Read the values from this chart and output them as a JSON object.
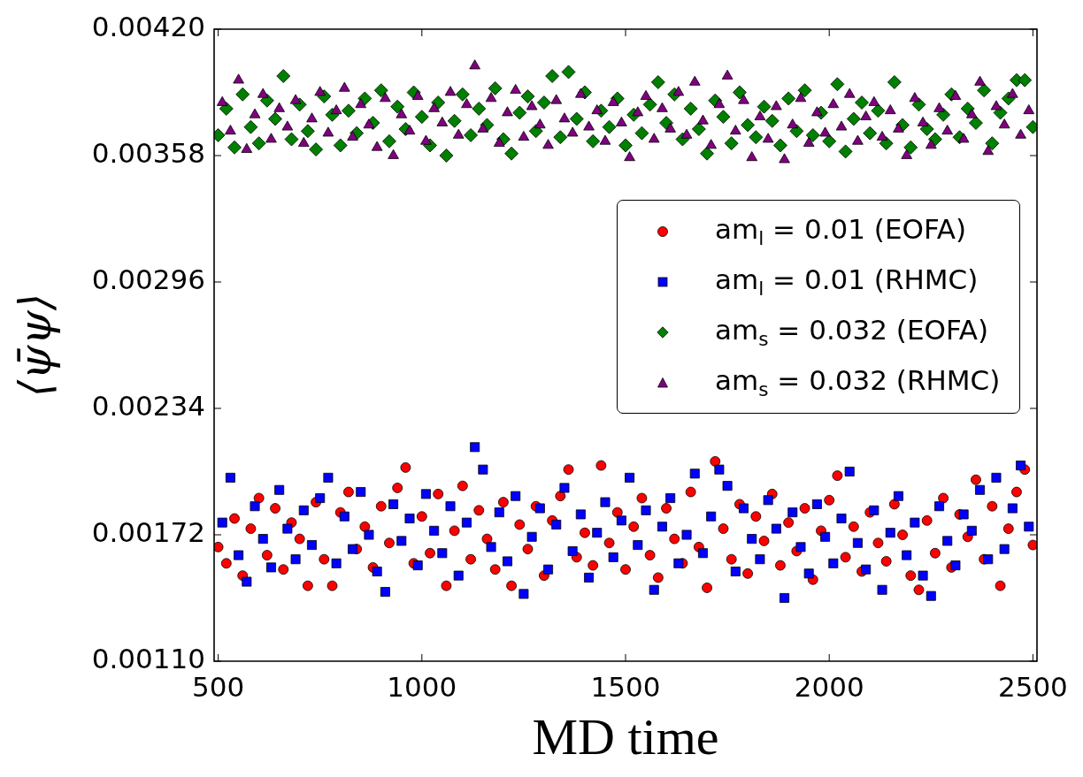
{
  "chart_data": {
    "type": "scatter",
    "xlabel": "MD time",
    "ylabel": "⟨ψ̄ψ⟩",
    "xlim": [
      490,
      2510
    ],
    "xticks": [
      500,
      1000,
      1500,
      2000,
      2500
    ],
    "ylim": [
      0.0011,
      0.0042
    ],
    "yticks": [
      {
        "value": 0.0011,
        "label": "0.00110"
      },
      {
        "value": 0.00172,
        "label": "0.00172"
      },
      {
        "value": 0.00234,
        "label": "0.00234"
      },
      {
        "value": 0.00296,
        "label": "0.00296"
      },
      {
        "value": 0.00358,
        "label": "0.00358"
      },
      {
        "value": 0.0042,
        "label": "0.00420"
      }
    ],
    "legend": "right",
    "series": [
      {
        "name": "am$_{l}$ = 0.01 (EOFA)",
        "color": "#ff0000",
        "marker": "circle",
        "x": [
          500,
          520,
          540,
          560,
          580,
          600,
          620,
          640,
          660,
          680,
          700,
          720,
          740,
          760,
          780,
          800,
          820,
          840,
          860,
          880,
          900,
          920,
          940,
          960,
          980,
          1000,
          1020,
          1040,
          1060,
          1080,
          1100,
          1120,
          1140,
          1160,
          1180,
          1200,
          1220,
          1240,
          1260,
          1280,
          1300,
          1320,
          1340,
          1360,
          1380,
          1400,
          1420,
          1440,
          1460,
          1480,
          1500,
          1520,
          1540,
          1560,
          1580,
          1600,
          1620,
          1640,
          1660,
          1680,
          1700,
          1720,
          1740,
          1760,
          1780,
          1800,
          1820,
          1840,
          1860,
          1880,
          1900,
          1920,
          1940,
          1960,
          1980,
          2000,
          2020,
          2040,
          2060,
          2080,
          2100,
          2120,
          2140,
          2160,
          2180,
          2200,
          2220,
          2240,
          2260,
          2280,
          2300,
          2320,
          2340,
          2360,
          2380,
          2400,
          2420,
          2440,
          2460,
          2480,
          2500
        ],
        "values": [
          0.00166,
          0.00158,
          0.0018,
          0.00152,
          0.00175,
          0.0019,
          0.00162,
          0.00185,
          0.00155,
          0.00178,
          0.0017,
          0.00147,
          0.00188,
          0.0016,
          0.00147,
          0.00183,
          0.00193,
          0.00165,
          0.00176,
          0.00156,
          0.00186,
          0.00168,
          0.00195,
          0.00205,
          0.00158,
          0.00181,
          0.00163,
          0.00192,
          0.00147,
          0.00174,
          0.00196,
          0.0016,
          0.00184,
          0.0017,
          0.00155,
          0.00188,
          0.00147,
          0.00177,
          0.00165,
          0.00186,
          0.00152,
          0.00179,
          0.00191,
          0.00204,
          0.00161,
          0.00173,
          0.00157,
          0.00206,
          0.00168,
          0.00183,
          0.00155,
          0.00176,
          0.0019,
          0.00162,
          0.00151,
          0.00185,
          0.0017,
          0.00158,
          0.00193,
          0.00166,
          0.00146,
          0.00208,
          0.00175,
          0.0016,
          0.00187,
          0.00153,
          0.00181,
          0.00169,
          0.00192,
          0.00157,
          0.00178,
          0.00164,
          0.00185,
          0.0015,
          0.00174,
          0.00189,
          0.00201,
          0.00161,
          0.00176,
          0.00154,
          0.00183,
          0.00168,
          0.00159,
          0.00187,
          0.00172,
          0.00152,
          0.00145,
          0.00179,
          0.00163,
          0.0019,
          0.00156,
          0.00182,
          0.00171,
          0.00199,
          0.0016,
          0.00186,
          0.00147,
          0.00175,
          0.00193,
          0.00204,
          0.00167
        ]
      },
      {
        "name": "am$_{l}$ = 0.01 (RHMC)",
        "color": "#0000ff",
        "marker": "square",
        "x": [
          510,
          530,
          550,
          570,
          590,
          610,
          630,
          650,
          670,
          690,
          710,
          730,
          750,
          770,
          790,
          810,
          830,
          850,
          870,
          890,
          910,
          930,
          950,
          970,
          990,
          1010,
          1030,
          1050,
          1070,
          1090,
          1110,
          1130,
          1150,
          1170,
          1190,
          1210,
          1230,
          1250,
          1270,
          1290,
          1310,
          1330,
          1350,
          1370,
          1390,
          1410,
          1430,
          1450,
          1470,
          1490,
          1510,
          1530,
          1550,
          1570,
          1590,
          1610,
          1630,
          1650,
          1670,
          1690,
          1710,
          1730,
          1750,
          1770,
          1790,
          1810,
          1830,
          1850,
          1870,
          1890,
          1910,
          1930,
          1950,
          1970,
          1990,
          2010,
          2030,
          2050,
          2070,
          2090,
          2110,
          2130,
          2150,
          2170,
          2190,
          2210,
          2230,
          2250,
          2270,
          2290,
          2310,
          2330,
          2350,
          2370,
          2390,
          2410,
          2430,
          2450,
          2470,
          2490
        ],
        "values": [
          0.00178,
          0.002,
          0.00162,
          0.00149,
          0.00186,
          0.0017,
          0.00156,
          0.00194,
          0.00175,
          0.0016,
          0.00184,
          0.00167,
          0.0019,
          0.002,
          0.00158,
          0.00181,
          0.00165,
          0.00193,
          0.00172,
          0.00154,
          0.00144,
          0.00187,
          0.00169,
          0.0018,
          0.00157,
          0.00192,
          0.00174,
          0.00163,
          0.00186,
          0.00152,
          0.00178,
          0.00215,
          0.00204,
          0.00166,
          0.00183,
          0.00159,
          0.00191,
          0.00143,
          0.00171,
          0.00185,
          0.00155,
          0.00177,
          0.00195,
          0.00164,
          0.00182,
          0.00151,
          0.00173,
          0.00188,
          0.00161,
          0.00179,
          0.002,
          0.00167,
          0.00184,
          0.00145,
          0.00176,
          0.0019,
          0.00158,
          0.00172,
          0.00202,
          0.00163,
          0.00181,
          0.00204,
          0.00196,
          0.00154,
          0.00185,
          0.0017,
          0.0016,
          0.00189,
          0.00175,
          0.00141,
          0.00183,
          0.00166,
          0.00153,
          0.00187,
          0.00171,
          0.00158,
          0.0018,
          0.00203,
          0.00168,
          0.00155,
          0.00184,
          0.00145,
          0.00173,
          0.00191,
          0.00162,
          0.00178,
          0.00152,
          0.00142,
          0.00186,
          0.00169,
          0.00157,
          0.00182,
          0.00174,
          0.00194,
          0.0016,
          0.002,
          0.00165,
          0.00185,
          0.00206,
          0.00176
        ]
      },
      {
        "name": "am$_{s}$ = 0.032 (EOFA)",
        "color": "#008000",
        "marker": "diamond",
        "x": [
          500,
          520,
          540,
          560,
          580,
          600,
          620,
          640,
          660,
          680,
          700,
          720,
          740,
          760,
          780,
          800,
          820,
          840,
          860,
          880,
          900,
          920,
          940,
          960,
          980,
          1000,
          1020,
          1040,
          1060,
          1080,
          1100,
          1120,
          1140,
          1160,
          1180,
          1200,
          1220,
          1240,
          1260,
          1280,
          1300,
          1320,
          1340,
          1360,
          1380,
          1400,
          1420,
          1440,
          1460,
          1480,
          1500,
          1520,
          1540,
          1560,
          1580,
          1600,
          1620,
          1640,
          1660,
          1680,
          1700,
          1720,
          1740,
          1760,
          1780,
          1800,
          1820,
          1840,
          1860,
          1880,
          1900,
          1920,
          1940,
          1960,
          1980,
          2000,
          2020,
          2040,
          2060,
          2080,
          2100,
          2120,
          2140,
          2160,
          2180,
          2200,
          2220,
          2240,
          2260,
          2280,
          2300,
          2320,
          2340,
          2360,
          2380,
          2400,
          2420,
          2440,
          2460,
          2480,
          2500
        ],
        "values": [
          0.00368,
          0.00381,
          0.00362,
          0.00388,
          0.00372,
          0.00364,
          0.00385,
          0.00376,
          0.00397,
          0.00366,
          0.00383,
          0.0037,
          0.00361,
          0.00387,
          0.00378,
          0.00363,
          0.0038,
          0.00369,
          0.00386,
          0.00374,
          0.0039,
          0.00365,
          0.00382,
          0.00371,
          0.00389,
          0.00377,
          0.00363,
          0.00384,
          0.00358,
          0.00375,
          0.00388,
          0.00368,
          0.00381,
          0.00373,
          0.00391,
          0.00366,
          0.00359,
          0.00379,
          0.00387,
          0.0037,
          0.00384,
          0.00397,
          0.00367,
          0.00399,
          0.00376,
          0.00389,
          0.00365,
          0.0038,
          0.00372,
          0.00386,
          0.00363,
          0.00378,
          0.00369,
          0.00383,
          0.00394,
          0.00374,
          0.00388,
          0.00366,
          0.00381,
          0.00371,
          0.00359,
          0.00385,
          0.00377,
          0.00364,
          0.00389,
          0.00373,
          0.00367,
          0.00382,
          0.00375,
          0.00363,
          0.00386,
          0.0037,
          0.0039,
          0.00368,
          0.00379,
          0.00365,
          0.00393,
          0.0036,
          0.00376,
          0.00384,
          0.00369,
          0.0038,
          0.00364,
          0.00394,
          0.00373,
          0.00362,
          0.00383,
          0.00371,
          0.00366,
          0.00378,
          0.00388,
          0.00367,
          0.00381,
          0.00374,
          0.0039,
          0.00364,
          0.00379,
          0.00386,
          0.00395,
          0.00395,
          0.00372
        ]
      },
      {
        "name": "am$_{s}$ = 0.032 (RHMC)",
        "color": "#800080",
        "marker": "triangle",
        "x": [
          510,
          530,
          550,
          570,
          590,
          610,
          630,
          650,
          670,
          690,
          710,
          730,
          750,
          770,
          790,
          810,
          830,
          850,
          870,
          890,
          910,
          930,
          950,
          970,
          990,
          1010,
          1030,
          1050,
          1070,
          1090,
          1110,
          1130,
          1150,
          1170,
          1190,
          1210,
          1230,
          1250,
          1270,
          1290,
          1310,
          1330,
          1350,
          1370,
          1390,
          1410,
          1430,
          1450,
          1470,
          1490,
          1510,
          1530,
          1550,
          1570,
          1590,
          1610,
          1630,
          1650,
          1670,
          1690,
          1710,
          1730,
          1750,
          1770,
          1790,
          1810,
          1830,
          1850,
          1870,
          1890,
          1910,
          1930,
          1950,
          1970,
          1990,
          2010,
          2030,
          2050,
          2070,
          2090,
          2110,
          2130,
          2150,
          2170,
          2190,
          2210,
          2230,
          2250,
          2270,
          2290,
          2310,
          2330,
          2350,
          2370,
          2390,
          2410,
          2430,
          2450,
          2470,
          2490
        ],
        "values": [
          0.00384,
          0.0037,
          0.00395,
          0.00361,
          0.00378,
          0.00388,
          0.00366,
          0.00381,
          0.00372,
          0.00385,
          0.00364,
          0.00376,
          0.00389,
          0.00369,
          0.0038,
          0.00391,
          0.00367,
          0.00383,
          0.00373,
          0.00362,
          0.00386,
          0.00358,
          0.00378,
          0.0037,
          0.00387,
          0.00365,
          0.00381,
          0.00374,
          0.00389,
          0.00368,
          0.00383,
          0.00402,
          0.00371,
          0.00386,
          0.00364,
          0.00379,
          0.0039,
          0.00367,
          0.00382,
          0.00373,
          0.00363,
          0.00385,
          0.00376,
          0.00369,
          0.00388,
          0.00372,
          0.0038,
          0.00365,
          0.00384,
          0.00374,
          0.00357,
          0.00379,
          0.00387,
          0.00366,
          0.00381,
          0.00371,
          0.00389,
          0.00368,
          0.00394,
          0.00375,
          0.00363,
          0.00383,
          0.00397,
          0.0037,
          0.00385,
          0.00357,
          0.00377,
          0.00366,
          0.00382,
          0.00356,
          0.00373,
          0.00386,
          0.00364,
          0.00379,
          0.00369,
          0.00383,
          0.00372,
          0.00388,
          0.00365,
          0.00377,
          0.00384,
          0.00367,
          0.0038,
          0.00371,
          0.00358,
          0.00386,
          0.00374,
          0.00363,
          0.00381,
          0.0037,
          0.00387,
          0.00366,
          0.00378,
          0.00394,
          0.0036,
          0.00382,
          0.00373,
          0.00388,
          0.00368,
          0.0038
        ]
      }
    ]
  }
}
